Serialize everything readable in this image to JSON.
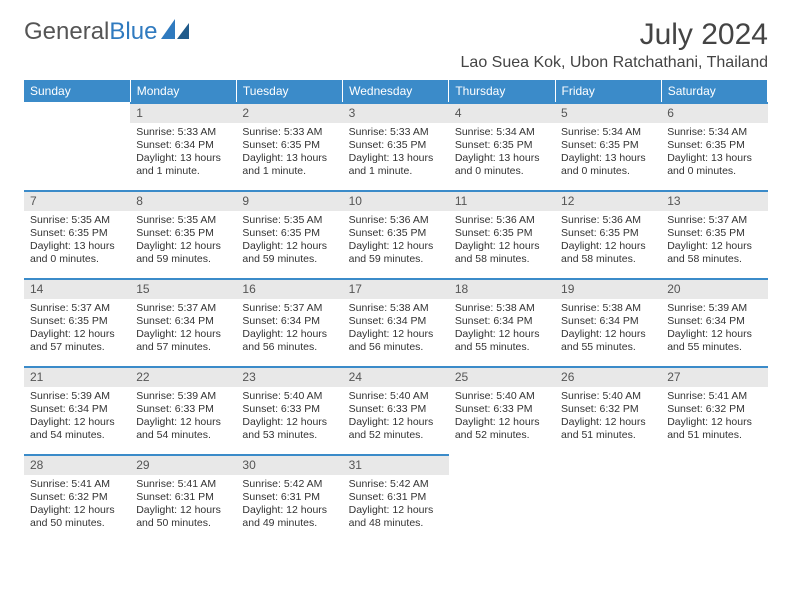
{
  "brand": {
    "part1": "General",
    "part2": "Blue"
  },
  "title": "July 2024",
  "location": "Lao Suea Kok, Ubon Ratchathani, Thailand",
  "colors": {
    "header_bg": "#3b8bc9",
    "daynum_bg": "#e8e8e8",
    "accent_border": "#3b8bc9",
    "text": "#333333",
    "page_bg": "#ffffff"
  },
  "weekdays": [
    "Sunday",
    "Monday",
    "Tuesday",
    "Wednesday",
    "Thursday",
    "Friday",
    "Saturday"
  ],
  "weeks": [
    [
      null,
      {
        "n": "1",
        "sr": "Sunrise: 5:33 AM",
        "ss": "Sunset: 6:34 PM",
        "dl1": "Daylight: 13 hours",
        "dl2": "and 1 minute."
      },
      {
        "n": "2",
        "sr": "Sunrise: 5:33 AM",
        "ss": "Sunset: 6:35 PM",
        "dl1": "Daylight: 13 hours",
        "dl2": "and 1 minute."
      },
      {
        "n": "3",
        "sr": "Sunrise: 5:33 AM",
        "ss": "Sunset: 6:35 PM",
        "dl1": "Daylight: 13 hours",
        "dl2": "and 1 minute."
      },
      {
        "n": "4",
        "sr": "Sunrise: 5:34 AM",
        "ss": "Sunset: 6:35 PM",
        "dl1": "Daylight: 13 hours",
        "dl2": "and 0 minutes."
      },
      {
        "n": "5",
        "sr": "Sunrise: 5:34 AM",
        "ss": "Sunset: 6:35 PM",
        "dl1": "Daylight: 13 hours",
        "dl2": "and 0 minutes."
      },
      {
        "n": "6",
        "sr": "Sunrise: 5:34 AM",
        "ss": "Sunset: 6:35 PM",
        "dl1": "Daylight: 13 hours",
        "dl2": "and 0 minutes."
      }
    ],
    [
      {
        "n": "7",
        "sr": "Sunrise: 5:35 AM",
        "ss": "Sunset: 6:35 PM",
        "dl1": "Daylight: 13 hours",
        "dl2": "and 0 minutes."
      },
      {
        "n": "8",
        "sr": "Sunrise: 5:35 AM",
        "ss": "Sunset: 6:35 PM",
        "dl1": "Daylight: 12 hours",
        "dl2": "and 59 minutes."
      },
      {
        "n": "9",
        "sr": "Sunrise: 5:35 AM",
        "ss": "Sunset: 6:35 PM",
        "dl1": "Daylight: 12 hours",
        "dl2": "and 59 minutes."
      },
      {
        "n": "10",
        "sr": "Sunrise: 5:36 AM",
        "ss": "Sunset: 6:35 PM",
        "dl1": "Daylight: 12 hours",
        "dl2": "and 59 minutes."
      },
      {
        "n": "11",
        "sr": "Sunrise: 5:36 AM",
        "ss": "Sunset: 6:35 PM",
        "dl1": "Daylight: 12 hours",
        "dl2": "and 58 minutes."
      },
      {
        "n": "12",
        "sr": "Sunrise: 5:36 AM",
        "ss": "Sunset: 6:35 PM",
        "dl1": "Daylight: 12 hours",
        "dl2": "and 58 minutes."
      },
      {
        "n": "13",
        "sr": "Sunrise: 5:37 AM",
        "ss": "Sunset: 6:35 PM",
        "dl1": "Daylight: 12 hours",
        "dl2": "and 58 minutes."
      }
    ],
    [
      {
        "n": "14",
        "sr": "Sunrise: 5:37 AM",
        "ss": "Sunset: 6:35 PM",
        "dl1": "Daylight: 12 hours",
        "dl2": "and 57 minutes."
      },
      {
        "n": "15",
        "sr": "Sunrise: 5:37 AM",
        "ss": "Sunset: 6:34 PM",
        "dl1": "Daylight: 12 hours",
        "dl2": "and 57 minutes."
      },
      {
        "n": "16",
        "sr": "Sunrise: 5:37 AM",
        "ss": "Sunset: 6:34 PM",
        "dl1": "Daylight: 12 hours",
        "dl2": "and 56 minutes."
      },
      {
        "n": "17",
        "sr": "Sunrise: 5:38 AM",
        "ss": "Sunset: 6:34 PM",
        "dl1": "Daylight: 12 hours",
        "dl2": "and 56 minutes."
      },
      {
        "n": "18",
        "sr": "Sunrise: 5:38 AM",
        "ss": "Sunset: 6:34 PM",
        "dl1": "Daylight: 12 hours",
        "dl2": "and 55 minutes."
      },
      {
        "n": "19",
        "sr": "Sunrise: 5:38 AM",
        "ss": "Sunset: 6:34 PM",
        "dl1": "Daylight: 12 hours",
        "dl2": "and 55 minutes."
      },
      {
        "n": "20",
        "sr": "Sunrise: 5:39 AM",
        "ss": "Sunset: 6:34 PM",
        "dl1": "Daylight: 12 hours",
        "dl2": "and 55 minutes."
      }
    ],
    [
      {
        "n": "21",
        "sr": "Sunrise: 5:39 AM",
        "ss": "Sunset: 6:34 PM",
        "dl1": "Daylight: 12 hours",
        "dl2": "and 54 minutes."
      },
      {
        "n": "22",
        "sr": "Sunrise: 5:39 AM",
        "ss": "Sunset: 6:33 PM",
        "dl1": "Daylight: 12 hours",
        "dl2": "and 54 minutes."
      },
      {
        "n": "23",
        "sr": "Sunrise: 5:40 AM",
        "ss": "Sunset: 6:33 PM",
        "dl1": "Daylight: 12 hours",
        "dl2": "and 53 minutes."
      },
      {
        "n": "24",
        "sr": "Sunrise: 5:40 AM",
        "ss": "Sunset: 6:33 PM",
        "dl1": "Daylight: 12 hours",
        "dl2": "and 52 minutes."
      },
      {
        "n": "25",
        "sr": "Sunrise: 5:40 AM",
        "ss": "Sunset: 6:33 PM",
        "dl1": "Daylight: 12 hours",
        "dl2": "and 52 minutes."
      },
      {
        "n": "26",
        "sr": "Sunrise: 5:40 AM",
        "ss": "Sunset: 6:32 PM",
        "dl1": "Daylight: 12 hours",
        "dl2": "and 51 minutes."
      },
      {
        "n": "27",
        "sr": "Sunrise: 5:41 AM",
        "ss": "Sunset: 6:32 PM",
        "dl1": "Daylight: 12 hours",
        "dl2": "and 51 minutes."
      }
    ],
    [
      {
        "n": "28",
        "sr": "Sunrise: 5:41 AM",
        "ss": "Sunset: 6:32 PM",
        "dl1": "Daylight: 12 hours",
        "dl2": "and 50 minutes."
      },
      {
        "n": "29",
        "sr": "Sunrise: 5:41 AM",
        "ss": "Sunset: 6:31 PM",
        "dl1": "Daylight: 12 hours",
        "dl2": "and 50 minutes."
      },
      {
        "n": "30",
        "sr": "Sunrise: 5:42 AM",
        "ss": "Sunset: 6:31 PM",
        "dl1": "Daylight: 12 hours",
        "dl2": "and 49 minutes."
      },
      {
        "n": "31",
        "sr": "Sunrise: 5:42 AM",
        "ss": "Sunset: 6:31 PM",
        "dl1": "Daylight: 12 hours",
        "dl2": "and 48 minutes."
      },
      null,
      null,
      null
    ]
  ]
}
